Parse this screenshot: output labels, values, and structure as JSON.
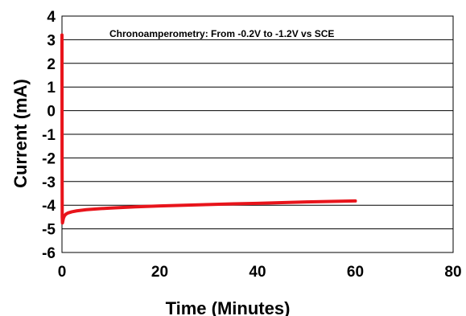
{
  "chart_data": {
    "type": "line",
    "title": "",
    "annotation": "Chronoamperometry: From -0.2V to -1.2V vs SCE",
    "xlabel": "Time (Minutes)",
    "ylabel": "Current (mA)",
    "xlim": [
      0,
      80
    ],
    "ylim": [
      -6,
      4
    ],
    "xticks": [
      "0",
      "20",
      "40",
      "60",
      "80"
    ],
    "yticks": [
      "4",
      "3",
      "2",
      "1",
      "0",
      "-1",
      "-2",
      "-3",
      "-4",
      "-5",
      "-6"
    ],
    "grid": "horizontal",
    "series": [
      {
        "color": "#e8141b",
        "x": [
          0,
          0.02,
          0.05,
          0.1,
          0.2,
          0.3,
          0.5,
          0.8,
          1.2,
          2,
          3,
          5,
          7.5,
          10,
          15,
          20,
          25,
          30,
          35,
          40,
          45,
          50,
          55,
          60
        ],
        "y": [
          3.2,
          -2.0,
          -4.5,
          -4.75,
          -4.65,
          -4.55,
          -4.45,
          -4.38,
          -4.33,
          -4.28,
          -4.24,
          -4.19,
          -4.15,
          -4.12,
          -4.07,
          -4.03,
          -4.0,
          -3.97,
          -3.94,
          -3.92,
          -3.89,
          -3.86,
          -3.84,
          -3.82
        ]
      }
    ]
  }
}
